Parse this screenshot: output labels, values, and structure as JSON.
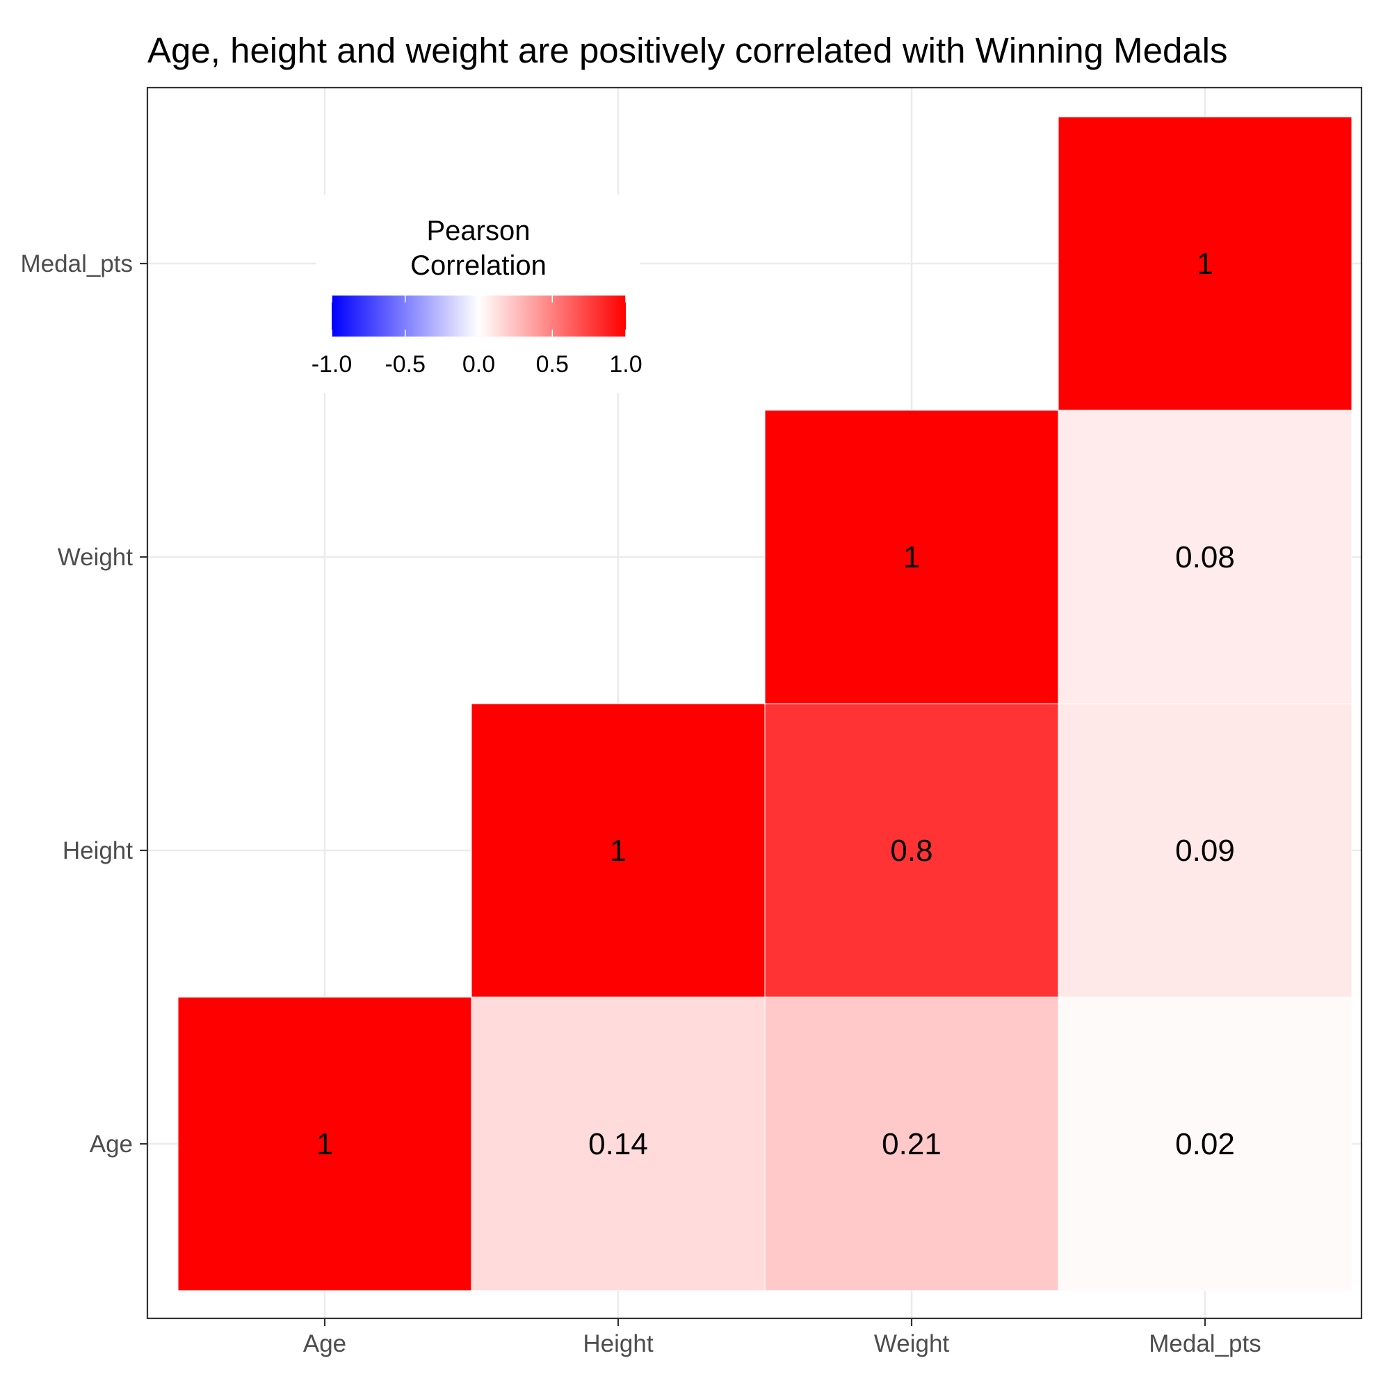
{
  "chart_data": {
    "type": "heatmap",
    "title": "Age, height and weight are positively correlated with Winning Medals",
    "xlabel": "",
    "ylabel": "",
    "x_categories": [
      "Age",
      "Height",
      "Weight",
      "Medal_pts"
    ],
    "y_categories": [
      "Age",
      "Height",
      "Weight",
      "Medal_pts"
    ],
    "cells": [
      {
        "x": "Age",
        "y": "Age",
        "value": 1,
        "label": "1"
      },
      {
        "x": "Height",
        "y": "Age",
        "value": 0.14,
        "label": "0.14"
      },
      {
        "x": "Weight",
        "y": "Age",
        "value": 0.21,
        "label": "0.21"
      },
      {
        "x": "Medal_pts",
        "y": "Age",
        "value": 0.02,
        "label": "0.02"
      },
      {
        "x": "Height",
        "y": "Height",
        "value": 1,
        "label": "1"
      },
      {
        "x": "Weight",
        "y": "Height",
        "value": 0.8,
        "label": "0.8"
      },
      {
        "x": "Medal_pts",
        "y": "Height",
        "value": 0.09,
        "label": "0.09"
      },
      {
        "x": "Weight",
        "y": "Weight",
        "value": 1,
        "label": "1"
      },
      {
        "x": "Medal_pts",
        "y": "Weight",
        "value": 0.08,
        "label": "0.08"
      },
      {
        "x": "Medal_pts",
        "y": "Medal_pts",
        "value": 1,
        "label": "1"
      }
    ],
    "legend": {
      "title_lines": [
        "Pearson",
        "Correlation"
      ],
      "ticks": [
        {
          "value": -1.0,
          "label": "-1.0"
        },
        {
          "value": -0.5,
          "label": "-0.5"
        },
        {
          "value": 0.0,
          "label": "0.0"
        },
        {
          "value": 0.5,
          "label": "0.5"
        },
        {
          "value": 1.0,
          "label": "1.0"
        }
      ],
      "limits": [
        -1,
        1
      ],
      "placement": "top-left"
    },
    "colors": {
      "low": "#0000ff",
      "mid": "#ffffff",
      "high": "#ff0000"
    },
    "grid": true
  }
}
